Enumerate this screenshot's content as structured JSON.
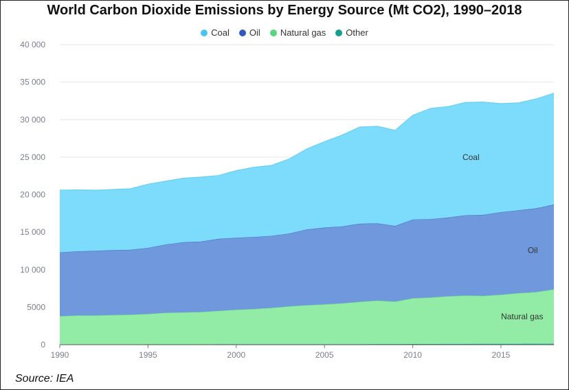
{
  "title": "World Carbon Dioxide Emissions by Energy Source (Mt CO2), 1990–2018",
  "source": "Source: IEA",
  "legend": [
    {
      "label": "Coal",
      "color": "#4cc3ee"
    },
    {
      "label": "Oil",
      "color": "#2f5bbf"
    },
    {
      "label": "Natural gas",
      "color": "#5ad680"
    },
    {
      "label": "Other",
      "color": "#129e90"
    }
  ],
  "chart_data": {
    "type": "area",
    "stacked": true,
    "title": "World Carbon Dioxide Emissions by Energy Source (Mt CO2), 1990–2018",
    "x": [
      1990,
      1991,
      1992,
      1993,
      1994,
      1995,
      1996,
      1997,
      1998,
      1999,
      2000,
      2001,
      2002,
      2003,
      2004,
      2005,
      2006,
      2007,
      2008,
      2009,
      2010,
      2011,
      2012,
      2013,
      2014,
      2015,
      2016,
      2017,
      2018
    ],
    "series": [
      {
        "name": "Other",
        "color": "#129e90",
        "fill": "#1fb5a4",
        "values": [
          50,
          50,
          50,
          50,
          50,
          55,
          55,
          55,
          55,
          60,
          60,
          60,
          60,
          65,
          65,
          70,
          70,
          75,
          80,
          85,
          90,
          95,
          100,
          105,
          110,
          115,
          120,
          125,
          130
        ]
      },
      {
        "name": "Natural gas",
        "color": "#5ad680",
        "fill": "#93eca6",
        "values": [
          3750,
          3850,
          3850,
          3900,
          3950,
          4050,
          4200,
          4250,
          4300,
          4450,
          4600,
          4700,
          4850,
          5050,
          5200,
          5300,
          5450,
          5650,
          5800,
          5650,
          6100,
          6200,
          6350,
          6450,
          6400,
          6550,
          6750,
          6900,
          7250
        ]
      },
      {
        "name": "Oil",
        "color": "#2f5bbf",
        "fill": "#6f98dd",
        "values": [
          8500,
          8550,
          8600,
          8650,
          8650,
          8800,
          9100,
          9350,
          9400,
          9600,
          9600,
          9600,
          9600,
          9700,
          10100,
          10250,
          10250,
          10400,
          10300,
          10100,
          10500,
          10450,
          10500,
          10700,
          10800,
          11000,
          11050,
          11150,
          11300
        ]
      },
      {
        "name": "Coal",
        "color": "#4cc3ee",
        "fill": "#7ddcfb",
        "values": [
          8300,
          8200,
          8100,
          8100,
          8150,
          8500,
          8450,
          8550,
          8600,
          8450,
          8950,
          9300,
          9400,
          9950,
          10750,
          11450,
          12180,
          12900,
          12950,
          12750,
          13900,
          14750,
          14800,
          15050,
          15040,
          14485,
          14330,
          14600,
          14850
        ]
      }
    ],
    "ylim": [
      0,
      40000
    ],
    "yticks": [
      "0",
      "5000",
      "10 000",
      "15 000",
      "20 000",
      "25 000",
      "30 000",
      "35 000",
      "40 000"
    ],
    "ytick_values": [
      0,
      5000,
      10000,
      15000,
      20000,
      25000,
      30000,
      35000,
      40000
    ],
    "xticks": [
      "1990",
      "1995",
      "2000",
      "2005",
      "2010",
      "2015"
    ],
    "xtick_values": [
      1990,
      1995,
      2000,
      2005,
      2010,
      2015
    ],
    "xlim": [
      1990,
      2018
    ],
    "annotations": [
      {
        "text": "Coal",
        "x": 2013.3,
        "y": 24600
      },
      {
        "text": "Oil",
        "x": 2016.8,
        "y": 12200
      },
      {
        "text": "Natural gas",
        "x": 2016.2,
        "y": 3400
      }
    ],
    "grid": "horizontal",
    "legend_position": "top-center"
  }
}
